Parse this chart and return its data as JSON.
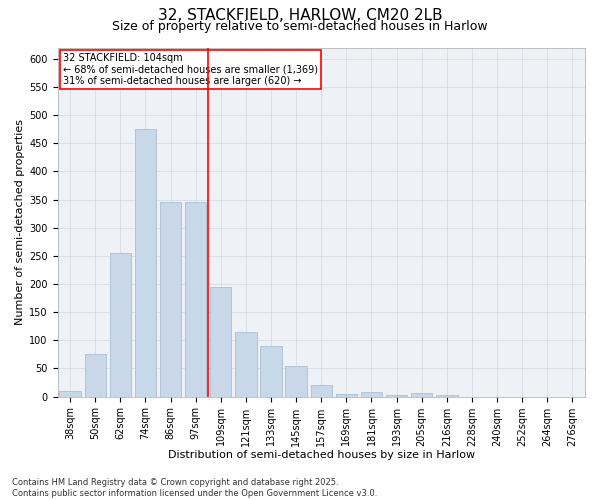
{
  "title": "32, STACKFIELD, HARLOW, CM20 2LB",
  "subtitle": "Size of property relative to semi-detached houses in Harlow",
  "xlabel": "Distribution of semi-detached houses by size in Harlow",
  "ylabel": "Number of semi-detached properties",
  "footnote": "Contains HM Land Registry data © Crown copyright and database right 2025.\nContains public sector information licensed under the Open Government Licence v3.0.",
  "categories": [
    "38sqm",
    "50sqm",
    "62sqm",
    "74sqm",
    "86sqm",
    "97sqm",
    "109sqm",
    "121sqm",
    "133sqm",
    "145sqm",
    "157sqm",
    "169sqm",
    "181sqm",
    "193sqm",
    "205sqm",
    "216sqm",
    "228sqm",
    "240sqm",
    "252sqm",
    "264sqm",
    "276sqm"
  ],
  "values": [
    10,
    75,
    255,
    475,
    345,
    345,
    195,
    115,
    90,
    55,
    20,
    5,
    8,
    2,
    7,
    2,
    0,
    0,
    0,
    0,
    0
  ],
  "bar_color": "#c8d8e8",
  "bar_edge_color": "#a0b8d0",
  "vline_x": 5.5,
  "vline_color": "red",
  "annotation_title": "32 STACKFIELD: 104sqm",
  "annotation_line1": "← 68% of semi-detached houses are smaller (1,369)",
  "annotation_line2": "31% of semi-detached houses are larger (620) →",
  "annotation_box_color": "red",
  "ylim": [
    0,
    620
  ],
  "yticks": [
    0,
    50,
    100,
    150,
    200,
    250,
    300,
    350,
    400,
    450,
    500,
    550,
    600
  ],
  "grid_color": "#d0d8e0",
  "bg_color": "#eef2f7",
  "title_fontsize": 11,
  "subtitle_fontsize": 9,
  "axis_label_fontsize": 8,
  "tick_fontsize": 7,
  "footnote_fontsize": 6
}
